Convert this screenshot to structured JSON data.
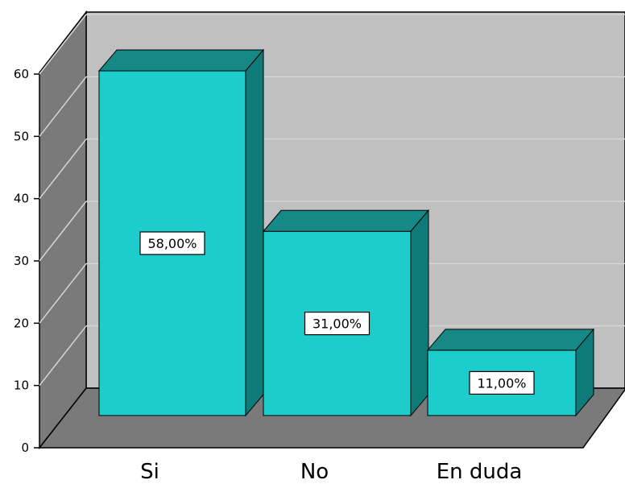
{
  "chart_data": {
    "type": "bar",
    "categories": [
      "Si",
      "No",
      "En duda"
    ],
    "values": [
      58,
      31,
      11
    ],
    "data_labels": [
      "58,00%",
      "31,00%",
      "11,00%"
    ],
    "ylim": [
      0,
      60
    ],
    "yticks": [
      0,
      10,
      20,
      30,
      40,
      50,
      60
    ],
    "ytick_labels": [
      "0",
      "10",
      "20",
      "30",
      "40",
      "50",
      "60"
    ],
    "title": "",
    "xlabel": "",
    "ylabel": "",
    "grid": true,
    "style": "3d",
    "colors": {
      "bar_front": "#1ccdcc",
      "bar_top": "#168885",
      "bar_side": "#0f7b79",
      "back_wall": "#c0c0c0",
      "side_wall": "#7a7a7a",
      "floor": "#7a7a7a",
      "gridline": "#d6d6d6",
      "label_bg": "#ffffff"
    }
  }
}
